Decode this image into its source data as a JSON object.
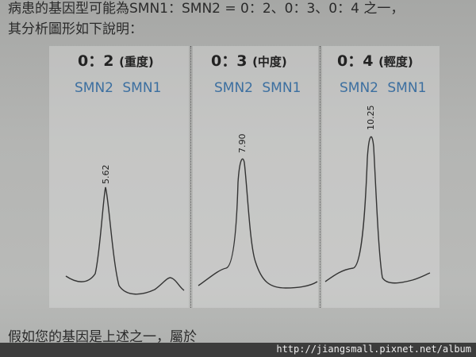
{
  "text": {
    "line1": "病患的基因型可能為SMN1：SMN2 = 0：2、0：3、0：4 之一，",
    "line2": "其分析圖形如下說明：",
    "line3": "假如您的基因是上述之一，屬於"
  },
  "panels": [
    {
      "ratio": "0：2",
      "severity": "(重度)",
      "genes": "SMN2  SMN1",
      "peak_value": "5.62"
    },
    {
      "ratio": "0：3",
      "severity": "(中度)",
      "genes": "SMN2  SMN1",
      "peak_value": "7.90"
    },
    {
      "ratio": "0：4",
      "severity": "(輕度)",
      "genes": "SMN2  SMN1",
      "peak_value": "10.25"
    }
  ],
  "watermark": "http://jiangsmall.pixnet.net/album",
  "colors": {
    "gene_label": "#3c6fa0",
    "curve": "#333333"
  }
}
